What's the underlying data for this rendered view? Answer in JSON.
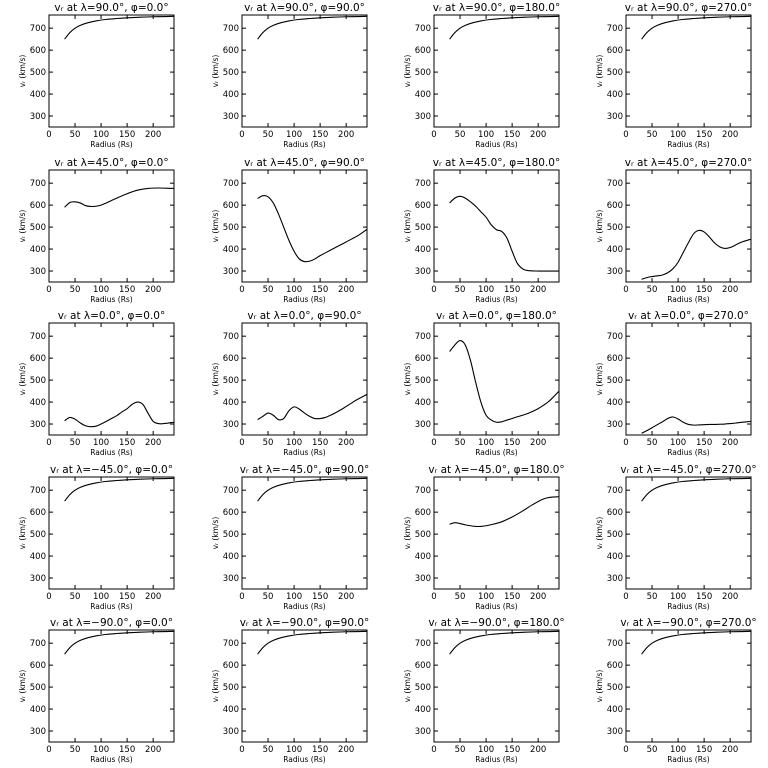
{
  "panels": [
    {
      "title": "vᵣ at λ=90.0°, φ=0.0°"
    },
    {
      "title": "vᵣ at λ=90.0°, φ=90.0°"
    },
    {
      "title": "vᵣ at λ=90.0°, φ=180.0°"
    },
    {
      "title": "vᵣ at λ=90.0°, φ=270.0°"
    },
    {
      "title": "vᵣ at λ=45.0°, φ=0.0°"
    },
    {
      "title": "vᵣ at λ=45.0°, φ=90.0°"
    },
    {
      "title": "vᵣ at λ=45.0°, φ=180.0°"
    },
    {
      "title": "vᵣ at λ=45.0°, φ=270.0°"
    },
    {
      "title": "vᵣ at λ=0.0°, φ=0.0°"
    },
    {
      "title": "vᵣ at λ=0.0°, φ=90.0°"
    },
    {
      "title": "vᵣ at λ=0.0°, φ=180.0°"
    },
    {
      "title": "vᵣ at λ=0.0°, φ=270.0°"
    },
    {
      "title": "vᵣ at λ=−45.0°, φ=0.0°"
    },
    {
      "title": "vᵣ at λ=−45.0°, φ=90.0°"
    },
    {
      "title": "vᵣ at λ=−45.0°, φ=180.0°"
    },
    {
      "title": "vᵣ at λ=−45.0°, φ=270.0°"
    },
    {
      "title": "vᵣ at λ=−90.0°, φ=0.0°"
    },
    {
      "title": "vᵣ at λ=−90.0°, φ=90.0°"
    },
    {
      "title": "vᵣ at λ=−90.0°, φ=180.0°"
    },
    {
      "title": "vᵣ at λ=−90.0°, φ=270.0°"
    }
  ],
  "chart_data": [
    {
      "type": "line",
      "title": "vᵣ at λ=90.0°, φ=0.0°",
      "xlabel": "Radius (Rs)",
      "ylabel": "vᵣ (km/s)",
      "xlim": [
        0,
        240
      ],
      "ylim": [
        250,
        760
      ],
      "x_ticks": [
        0,
        50,
        100,
        150,
        200
      ],
      "y_ticks": [
        300,
        400,
        500,
        600,
        700
      ],
      "x": [
        30,
        40,
        50,
        60,
        75,
        90,
        110,
        130,
        150,
        175,
        200,
        225,
        240
      ],
      "y": [
        650,
        680,
        700,
        713,
        725,
        733,
        740,
        744,
        747,
        750,
        752,
        753,
        754
      ]
    },
    {
      "type": "line",
      "title": "vᵣ at λ=90.0°, φ=90.0°",
      "xlabel": "Radius (Rs)",
      "ylabel": "vᵣ (km/s)",
      "xlim": [
        0,
        240
      ],
      "ylim": [
        250,
        760
      ],
      "x_ticks": [
        0,
        50,
        100,
        150,
        200
      ],
      "y_ticks": [
        300,
        400,
        500,
        600,
        700
      ],
      "x": [
        30,
        40,
        50,
        60,
        75,
        90,
        110,
        130,
        150,
        175,
        200,
        225,
        240
      ],
      "y": [
        650,
        680,
        700,
        713,
        725,
        733,
        740,
        744,
        747,
        750,
        752,
        753,
        754
      ]
    },
    {
      "type": "line",
      "title": "vᵣ at λ=90.0°, φ=180.0°",
      "xlabel": "Radius (Rs)",
      "ylabel": "vᵣ (km/s)",
      "xlim": [
        0,
        240
      ],
      "ylim": [
        250,
        760
      ],
      "x_ticks": [
        0,
        50,
        100,
        150,
        200
      ],
      "y_ticks": [
        300,
        400,
        500,
        600,
        700
      ],
      "x": [
        30,
        40,
        50,
        60,
        75,
        90,
        110,
        130,
        150,
        175,
        200,
        225,
        240
      ],
      "y": [
        650,
        680,
        700,
        713,
        725,
        733,
        740,
        744,
        747,
        750,
        752,
        753,
        754
      ]
    },
    {
      "type": "line",
      "title": "vᵣ at λ=90.0°, φ=270.0°",
      "xlabel": "Radius (Rs)",
      "ylabel": "vᵣ (km/s)",
      "xlim": [
        0,
        240
      ],
      "ylim": [
        250,
        760
      ],
      "x_ticks": [
        0,
        50,
        100,
        150,
        200
      ],
      "y_ticks": [
        300,
        400,
        500,
        600,
        700
      ],
      "x": [
        30,
        40,
        50,
        60,
        75,
        90,
        110,
        130,
        150,
        175,
        200,
        225,
        240
      ],
      "y": [
        650,
        680,
        700,
        713,
        725,
        733,
        740,
        744,
        747,
        750,
        752,
        753,
        754
      ]
    },
    {
      "type": "line",
      "title": "vᵣ at λ=45.0°, φ=0.0°",
      "xlabel": "Radius (Rs)",
      "ylabel": "vᵣ (km/s)",
      "xlim": [
        0,
        240
      ],
      "ylim": [
        250,
        760
      ],
      "x_ticks": [
        0,
        50,
        100,
        150,
        200
      ],
      "y_ticks": [
        300,
        400,
        500,
        600,
        700
      ],
      "x": [
        30,
        40,
        50,
        60,
        70,
        80,
        90,
        100,
        110,
        130,
        150,
        170,
        190,
        210,
        225,
        240
      ],
      "y": [
        590,
        612,
        615,
        610,
        598,
        594,
        595,
        600,
        610,
        632,
        652,
        668,
        676,
        678,
        677,
        676
      ]
    },
    {
      "type": "line",
      "title": "vᵣ at λ=45.0°, φ=90.0°",
      "xlabel": "Radius (Rs)",
      "ylabel": "vᵣ (km/s)",
      "xlim": [
        0,
        240
      ],
      "ylim": [
        250,
        760
      ],
      "x_ticks": [
        0,
        50,
        100,
        150,
        200
      ],
      "y_ticks": [
        300,
        400,
        500,
        600,
        700
      ],
      "x": [
        30,
        40,
        50,
        60,
        70,
        80,
        90,
        100,
        110,
        120,
        130,
        140,
        150,
        170,
        190,
        210,
        225,
        240
      ],
      "y": [
        630,
        643,
        638,
        610,
        560,
        500,
        440,
        390,
        355,
        343,
        345,
        355,
        370,
        395,
        420,
        445,
        465,
        490
      ]
    },
    {
      "type": "line",
      "title": "vᵣ at λ=45.0°, φ=180.0°",
      "xlabel": "Radius (Rs)",
      "ylabel": "vᵣ (km/s)",
      "xlim": [
        0,
        240
      ],
      "ylim": [
        250,
        760
      ],
      "x_ticks": [
        0,
        50,
        100,
        150,
        200
      ],
      "y_ticks": [
        300,
        400,
        500,
        600,
        700
      ],
      "x": [
        30,
        40,
        50,
        60,
        70,
        80,
        90,
        100,
        110,
        120,
        130,
        140,
        150,
        160,
        170,
        180,
        200,
        220,
        240
      ],
      "y": [
        610,
        632,
        640,
        632,
        615,
        595,
        570,
        545,
        510,
        488,
        480,
        450,
        390,
        335,
        310,
        302,
        300,
        300,
        300
      ]
    },
    {
      "type": "line",
      "title": "vᵣ at λ=45.0°, φ=270.0°",
      "xlabel": "Radius (Rs)",
      "ylabel": "vᵣ (km/s)",
      "xlim": [
        0,
        240
      ],
      "ylim": [
        250,
        760
      ],
      "x_ticks": [
        0,
        50,
        100,
        150,
        200
      ],
      "y_ticks": [
        300,
        400,
        500,
        600,
        700
      ],
      "x": [
        30,
        40,
        50,
        60,
        70,
        80,
        90,
        100,
        110,
        120,
        130,
        140,
        150,
        160,
        170,
        180,
        190,
        200,
        210,
        220,
        240
      ],
      "y": [
        262,
        270,
        275,
        278,
        282,
        292,
        310,
        340,
        385,
        430,
        470,
        485,
        478,
        455,
        428,
        410,
        403,
        407,
        418,
        430,
        445
      ]
    },
    {
      "type": "line",
      "title": "vᵣ at λ=0.0°, φ=0.0°",
      "xlabel": "Radius (Rs)",
      "ylabel": "vᵣ (km/s)",
      "xlim": [
        0,
        240
      ],
      "ylim": [
        250,
        760
      ],
      "x_ticks": [
        0,
        50,
        100,
        150,
        200
      ],
      "y_ticks": [
        300,
        400,
        500,
        600,
        700
      ],
      "x": [
        30,
        40,
        50,
        60,
        70,
        80,
        90,
        100,
        110,
        120,
        130,
        140,
        150,
        160,
        170,
        180,
        190,
        200,
        210,
        220,
        240
      ],
      "y": [
        315,
        330,
        322,
        305,
        292,
        288,
        290,
        300,
        312,
        325,
        338,
        355,
        370,
        390,
        400,
        390,
        350,
        312,
        302,
        302,
        308
      ]
    },
    {
      "type": "line",
      "title": "vᵣ at λ=0.0°, φ=90.0°",
      "xlabel": "Radius (Rs)",
      "ylabel": "vᵣ (km/s)",
      "xlim": [
        0,
        240
      ],
      "ylim": [
        250,
        760
      ],
      "x_ticks": [
        0,
        50,
        100,
        150,
        200
      ],
      "y_ticks": [
        300,
        400,
        500,
        600,
        700
      ],
      "x": [
        30,
        40,
        50,
        60,
        70,
        80,
        90,
        100,
        110,
        120,
        130,
        140,
        150,
        160,
        170,
        180,
        190,
        200,
        210,
        220,
        240
      ],
      "y": [
        320,
        335,
        350,
        340,
        320,
        325,
        360,
        378,
        368,
        350,
        335,
        325,
        325,
        330,
        340,
        352,
        365,
        380,
        395,
        410,
        435
      ]
    },
    {
      "type": "line",
      "title": "vᵣ at λ=0.0°, φ=180.0°",
      "xlabel": "Radius (Rs)",
      "ylabel": "vᵣ (km/s)",
      "xlim": [
        0,
        240
      ],
      "ylim": [
        250,
        760
      ],
      "x_ticks": [
        0,
        50,
        100,
        150,
        200
      ],
      "y_ticks": [
        300,
        400,
        500,
        600,
        700
      ],
      "x": [
        30,
        40,
        50,
        60,
        70,
        80,
        90,
        100,
        110,
        120,
        130,
        140,
        150,
        160,
        170,
        180,
        190,
        200,
        210,
        220,
        230,
        240
      ],
      "y": [
        630,
        660,
        680,
        660,
        590,
        490,
        400,
        340,
        318,
        308,
        310,
        318,
        325,
        333,
        340,
        348,
        358,
        370,
        385,
        402,
        425,
        450
      ]
    },
    {
      "type": "line",
      "title": "vᵣ at λ=0.0°, φ=270.0°",
      "xlabel": "Radius (Rs)",
      "ylabel": "vᵣ (km/s)",
      "xlim": [
        0,
        240
      ],
      "ylim": [
        250,
        760
      ],
      "x_ticks": [
        0,
        50,
        100,
        150,
        200
      ],
      "y_ticks": [
        300,
        400,
        500,
        600,
        700
      ],
      "x": [
        30,
        40,
        50,
        60,
        70,
        80,
        90,
        100,
        110,
        120,
        130,
        140,
        150,
        160,
        170,
        180,
        190,
        200,
        210,
        220,
        240
      ],
      "y": [
        258,
        270,
        283,
        297,
        310,
        325,
        332,
        323,
        308,
        298,
        295,
        296,
        297,
        298,
        298,
        299,
        300,
        302,
        304,
        307,
        312
      ]
    },
    {
      "type": "line",
      "title": "vᵣ at λ=−45.0°, φ=0.0°",
      "xlabel": "Radius (Rs)",
      "ylabel": "vᵣ (km/s)",
      "xlim": [
        0,
        240
      ],
      "ylim": [
        250,
        760
      ],
      "x_ticks": [
        0,
        50,
        100,
        150,
        200
      ],
      "y_ticks": [
        300,
        400,
        500,
        600,
        700
      ],
      "x": [
        30,
        40,
        50,
        60,
        75,
        90,
        110,
        130,
        150,
        175,
        200,
        225,
        240
      ],
      "y": [
        650,
        680,
        700,
        713,
        725,
        733,
        740,
        744,
        747,
        750,
        752,
        753,
        754
      ]
    },
    {
      "type": "line",
      "title": "vᵣ at λ=−45.0°, φ=90.0°",
      "xlabel": "Radius (Rs)",
      "ylabel": "vᵣ (km/s)",
      "xlim": [
        0,
        240
      ],
      "ylim": [
        250,
        760
      ],
      "x_ticks": [
        0,
        50,
        100,
        150,
        200
      ],
      "y_ticks": [
        300,
        400,
        500,
        600,
        700
      ],
      "x": [
        30,
        40,
        50,
        60,
        75,
        90,
        110,
        130,
        150,
        175,
        200,
        225,
        240
      ],
      "y": [
        650,
        680,
        700,
        713,
        725,
        733,
        740,
        744,
        747,
        750,
        752,
        753,
        754
      ]
    },
    {
      "type": "line",
      "title": "vᵣ at λ=−45.0°, φ=180.0°",
      "xlabel": "Radius (Rs)",
      "ylabel": "vᵣ (km/s)",
      "xlim": [
        0,
        240
      ],
      "ylim": [
        250,
        760
      ],
      "x_ticks": [
        0,
        50,
        100,
        150,
        200
      ],
      "y_ticks": [
        300,
        400,
        500,
        600,
        700
      ],
      "x": [
        30,
        40,
        50,
        60,
        70,
        80,
        90,
        100,
        110,
        130,
        150,
        170,
        190,
        210,
        225,
        240
      ],
      "y": [
        545,
        552,
        548,
        542,
        538,
        535,
        535,
        538,
        543,
        556,
        578,
        605,
        635,
        660,
        668,
        670
      ]
    },
    {
      "type": "line",
      "title": "vᵣ at λ=−45.0°, φ=270.0°",
      "xlabel": "Radius (Rs)",
      "ylabel": "vᵣ (km/s)",
      "xlim": [
        0,
        240
      ],
      "ylim": [
        250,
        760
      ],
      "x_ticks": [
        0,
        50,
        100,
        150,
        200
      ],
      "y_ticks": [
        300,
        400,
        500,
        600,
        700
      ],
      "x": [
        30,
        40,
        50,
        60,
        75,
        90,
        110,
        130,
        150,
        175,
        200,
        225,
        240
      ],
      "y": [
        650,
        680,
        700,
        713,
        725,
        733,
        740,
        744,
        747,
        750,
        752,
        753,
        754
      ]
    },
    {
      "type": "line",
      "title": "vᵣ at λ=−90.0°, φ=0.0°",
      "xlabel": "Radius (Rs)",
      "ylabel": "vᵣ (km/s)",
      "xlim": [
        0,
        240
      ],
      "ylim": [
        250,
        760
      ],
      "x_ticks": [
        0,
        50,
        100,
        150,
        200
      ],
      "y_ticks": [
        300,
        400,
        500,
        600,
        700
      ],
      "x": [
        30,
        40,
        50,
        60,
        75,
        90,
        110,
        130,
        150,
        175,
        200,
        225,
        240
      ],
      "y": [
        650,
        680,
        700,
        713,
        725,
        733,
        740,
        744,
        747,
        750,
        752,
        753,
        754
      ]
    },
    {
      "type": "line",
      "title": "vᵣ at λ=−90.0°, φ=90.0°",
      "xlabel": "Radius (Rs)",
      "ylabel": "vᵣ (km/s)",
      "xlim": [
        0,
        240
      ],
      "ylim": [
        250,
        760
      ],
      "x_ticks": [
        0,
        50,
        100,
        150,
        200
      ],
      "y_ticks": [
        300,
        400,
        500,
        600,
        700
      ],
      "x": [
        30,
        40,
        50,
        60,
        75,
        90,
        110,
        130,
        150,
        175,
        200,
        225,
        240
      ],
      "y": [
        650,
        680,
        700,
        713,
        725,
        733,
        740,
        744,
        747,
        750,
        752,
        753,
        754
      ]
    },
    {
      "type": "line",
      "title": "vᵣ at λ=−90.0°, φ=180.0°",
      "xlabel": "Radius (Rs)",
      "ylabel": "vᵣ (km/s)",
      "xlim": [
        0,
        240
      ],
      "ylim": [
        250,
        760
      ],
      "x_ticks": [
        0,
        50,
        100,
        150,
        200
      ],
      "y_ticks": [
        300,
        400,
        500,
        600,
        700
      ],
      "x": [
        30,
        40,
        50,
        60,
        75,
        90,
        110,
        130,
        150,
        175,
        200,
        225,
        240
      ],
      "y": [
        650,
        680,
        700,
        713,
        725,
        733,
        740,
        744,
        747,
        750,
        752,
        753,
        754
      ]
    },
    {
      "type": "line",
      "title": "vᵣ at λ=−90.0°, φ=270.0°",
      "xlabel": "Radius (Rs)",
      "ylabel": "vᵣ (km/s)",
      "xlim": [
        0,
        240
      ],
      "ylim": [
        250,
        760
      ],
      "x_ticks": [
        0,
        50,
        100,
        150,
        200
      ],
      "y_ticks": [
        300,
        400,
        500,
        600,
        700
      ],
      "x": [
        30,
        40,
        50,
        60,
        75,
        90,
        110,
        130,
        150,
        175,
        200,
        225,
        240
      ],
      "y": [
        650,
        680,
        700,
        713,
        725,
        733,
        740,
        744,
        747,
        750,
        752,
        753,
        754
      ]
    }
  ]
}
